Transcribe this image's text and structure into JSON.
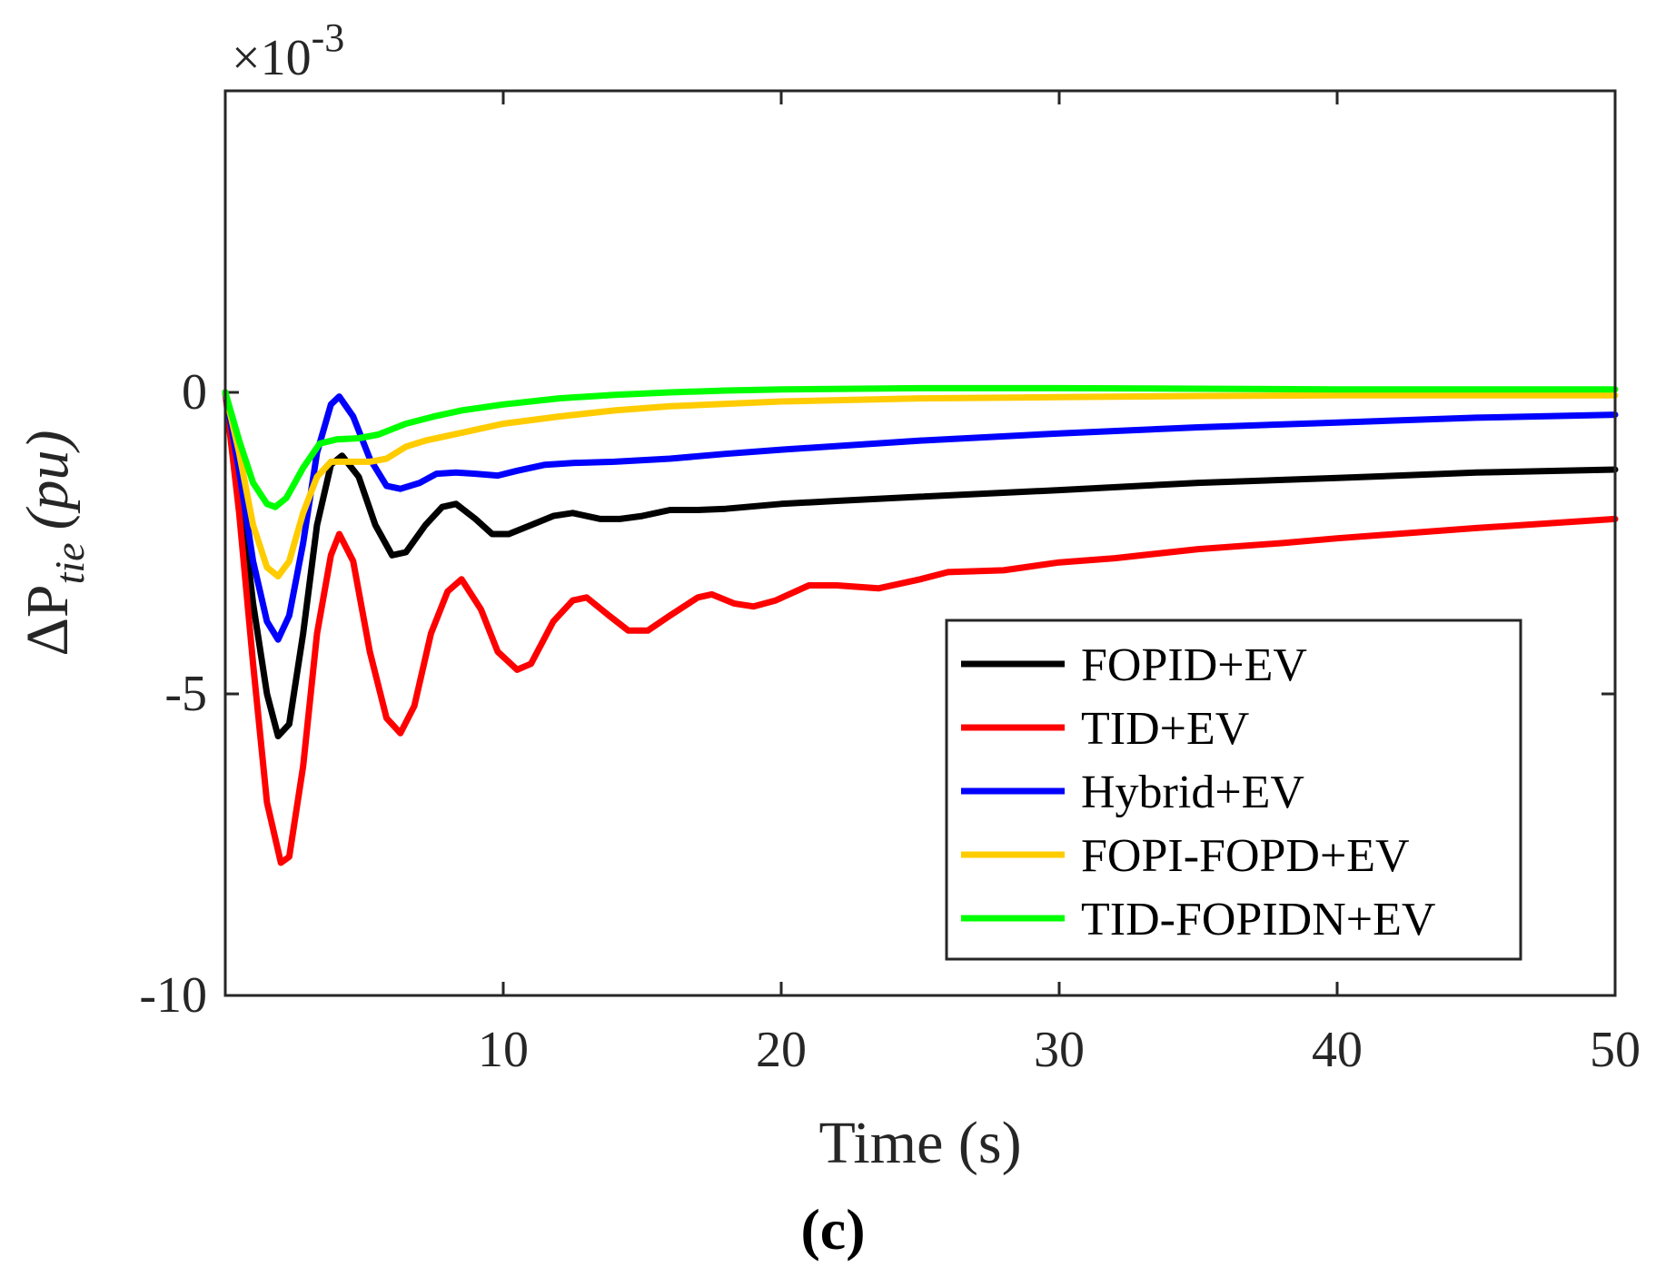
{
  "chart_data": {
    "type": "line",
    "title": "",
    "xlabel": "Time (s)",
    "ylabel": {
      "prefix": "ΔP",
      "subscript": "tie",
      "unit": "(pu)"
    },
    "y_exponent": {
      "base": "×10",
      "power": "-3"
    },
    "xlim": [
      0,
      50
    ],
    "ylim": [
      -10,
      5
    ],
    "xticks": [
      10,
      20,
      30,
      40,
      50
    ],
    "yticks": [
      -10,
      -5,
      0
    ],
    "grid": false,
    "legend_position": "bottom-right",
    "caption": "(c)",
    "series": [
      {
        "name": "FOPID+EV",
        "color": "#000000",
        "points": [
          [
            0,
            0
          ],
          [
            0.5,
            -1.5
          ],
          [
            1,
            -3.5
          ],
          [
            1.5,
            -5
          ],
          [
            1.9,
            -5.7
          ],
          [
            2.3,
            -5.5
          ],
          [
            2.8,
            -4
          ],
          [
            3.3,
            -2.2
          ],
          [
            3.8,
            -1.2
          ],
          [
            4.2,
            -1.05
          ],
          [
            4.8,
            -1.4
          ],
          [
            5.4,
            -2.2
          ],
          [
            6,
            -2.7
          ],
          [
            6.5,
            -2.65
          ],
          [
            7.2,
            -2.2
          ],
          [
            7.8,
            -1.9
          ],
          [
            8.3,
            -1.85
          ],
          [
            9,
            -2.1
          ],
          [
            9.6,
            -2.35
          ],
          [
            10.2,
            -2.35
          ],
          [
            11,
            -2.2
          ],
          [
            11.8,
            -2.05
          ],
          [
            12.5,
            -2
          ],
          [
            13.5,
            -2.1
          ],
          [
            14.2,
            -2.1
          ],
          [
            15,
            -2.05
          ],
          [
            16,
            -1.95
          ],
          [
            17,
            -1.95
          ],
          [
            18,
            -1.93
          ],
          [
            20,
            -1.85
          ],
          [
            22,
            -1.8
          ],
          [
            25,
            -1.73
          ],
          [
            30,
            -1.62
          ],
          [
            35,
            -1.5
          ],
          [
            40,
            -1.42
          ],
          [
            45,
            -1.33
          ],
          [
            50,
            -1.28
          ]
        ]
      },
      {
        "name": "TID+EV",
        "color": "#ff0000",
        "points": [
          [
            0,
            0
          ],
          [
            0.5,
            -2
          ],
          [
            1,
            -4.5
          ],
          [
            1.5,
            -6.8
          ],
          [
            2,
            -7.8
          ],
          [
            2.3,
            -7.7
          ],
          [
            2.8,
            -6.2
          ],
          [
            3.3,
            -4
          ],
          [
            3.8,
            -2.7
          ],
          [
            4.1,
            -2.35
          ],
          [
            4.6,
            -2.8
          ],
          [
            5.2,
            -4.3
          ],
          [
            5.8,
            -5.4
          ],
          [
            6.3,
            -5.65
          ],
          [
            6.8,
            -5.2
          ],
          [
            7.4,
            -4
          ],
          [
            8,
            -3.3
          ],
          [
            8.5,
            -3.1
          ],
          [
            9.2,
            -3.6
          ],
          [
            9.8,
            -4.3
          ],
          [
            10.5,
            -4.6
          ],
          [
            11,
            -4.5
          ],
          [
            11.8,
            -3.8
          ],
          [
            12.5,
            -3.45
          ],
          [
            13,
            -3.4
          ],
          [
            13.8,
            -3.7
          ],
          [
            14.5,
            -3.95
          ],
          [
            15.2,
            -3.95
          ],
          [
            16,
            -3.7
          ],
          [
            17,
            -3.4
          ],
          [
            17.5,
            -3.35
          ],
          [
            18.3,
            -3.5
          ],
          [
            19,
            -3.55
          ],
          [
            19.8,
            -3.45
          ],
          [
            21,
            -3.2
          ],
          [
            22,
            -3.2
          ],
          [
            23.5,
            -3.25
          ],
          [
            25,
            -3.1
          ],
          [
            26,
            -2.98
          ],
          [
            28,
            -2.95
          ],
          [
            30,
            -2.82
          ],
          [
            32,
            -2.75
          ],
          [
            35,
            -2.6
          ],
          [
            38,
            -2.5
          ],
          [
            40,
            -2.42
          ],
          [
            45,
            -2.25
          ],
          [
            50,
            -2.1
          ]
        ]
      },
      {
        "name": "Hybrid+EV",
        "color": "#0000ff",
        "points": [
          [
            0,
            0
          ],
          [
            0.5,
            -1.3
          ],
          [
            1,
            -2.8
          ],
          [
            1.5,
            -3.8
          ],
          [
            1.9,
            -4.1
          ],
          [
            2.3,
            -3.7
          ],
          [
            2.8,
            -2.5
          ],
          [
            3.3,
            -1
          ],
          [
            3.8,
            -0.2
          ],
          [
            4.1,
            -0.07
          ],
          [
            4.6,
            -0.4
          ],
          [
            5.2,
            -1.1
          ],
          [
            5.8,
            -1.55
          ],
          [
            6.3,
            -1.6
          ],
          [
            7,
            -1.5
          ],
          [
            7.6,
            -1.35
          ],
          [
            8.3,
            -1.33
          ],
          [
            9,
            -1.35
          ],
          [
            9.8,
            -1.38
          ],
          [
            10.5,
            -1.3
          ],
          [
            11.5,
            -1.2
          ],
          [
            12.5,
            -1.17
          ],
          [
            14,
            -1.15
          ],
          [
            16,
            -1.1
          ],
          [
            18,
            -1.02
          ],
          [
            20,
            -0.95
          ],
          [
            25,
            -0.8
          ],
          [
            30,
            -0.68
          ],
          [
            35,
            -0.58
          ],
          [
            40,
            -0.5
          ],
          [
            45,
            -0.42
          ],
          [
            50,
            -0.37
          ]
        ]
      },
      {
        "name": "FOPI-FOPD+EV",
        "color": "#ffcc00",
        "points": [
          [
            0,
            0
          ],
          [
            0.5,
            -1
          ],
          [
            1,
            -2.2
          ],
          [
            1.5,
            -2.9
          ],
          [
            1.9,
            -3.05
          ],
          [
            2.3,
            -2.8
          ],
          [
            2.8,
            -2
          ],
          [
            3.3,
            -1.4
          ],
          [
            3.8,
            -1.15
          ],
          [
            4.5,
            -1.15
          ],
          [
            5.2,
            -1.15
          ],
          [
            5.8,
            -1.1
          ],
          [
            6.5,
            -0.9
          ],
          [
            7.2,
            -0.8
          ],
          [
            8,
            -0.72
          ],
          [
            9,
            -0.62
          ],
          [
            10,
            -0.52
          ],
          [
            12,
            -0.4
          ],
          [
            14,
            -0.3
          ],
          [
            16,
            -0.23
          ],
          [
            20,
            -0.15
          ],
          [
            25,
            -0.1
          ],
          [
            30,
            -0.08
          ],
          [
            35,
            -0.06
          ],
          [
            40,
            -0.05
          ],
          [
            50,
            -0.05
          ]
        ]
      },
      {
        "name": "TID-FOPIDN+EV",
        "color": "#00ff00",
        "points": [
          [
            0,
            0
          ],
          [
            0.5,
            -0.8
          ],
          [
            1,
            -1.5
          ],
          [
            1.5,
            -1.85
          ],
          [
            1.8,
            -1.9
          ],
          [
            2.2,
            -1.75
          ],
          [
            2.8,
            -1.25
          ],
          [
            3.4,
            -0.85
          ],
          [
            4,
            -0.78
          ],
          [
            4.8,
            -0.76
          ],
          [
            5.5,
            -0.7
          ],
          [
            6.5,
            -0.52
          ],
          [
            7.5,
            -0.4
          ],
          [
            8.5,
            -0.3
          ],
          [
            10,
            -0.2
          ],
          [
            12,
            -0.1
          ],
          [
            14,
            -0.04
          ],
          [
            16,
            0
          ],
          [
            18,
            0.03
          ],
          [
            20,
            0.05
          ],
          [
            25,
            0.07
          ],
          [
            30,
            0.07
          ],
          [
            35,
            0.06
          ],
          [
            40,
            0.05
          ],
          [
            50,
            0.05
          ]
        ]
      }
    ]
  }
}
